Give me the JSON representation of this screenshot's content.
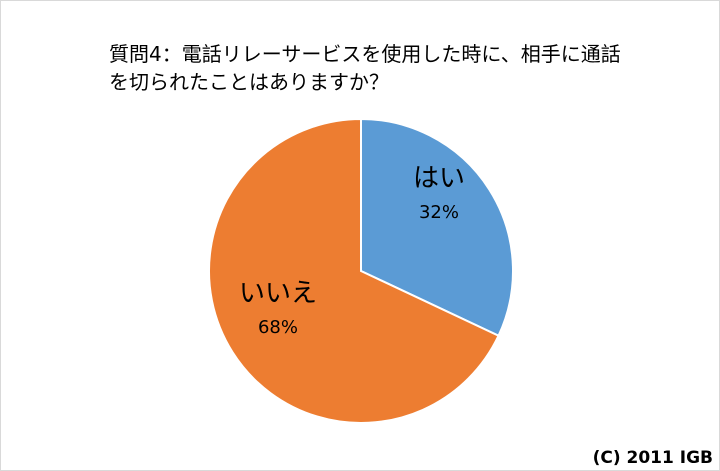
{
  "chart_data": {
    "type": "pie",
    "title": "質問4：電話リレーサービスを使用した時に、相手に通話\nを切られたことはありますか？",
    "categories": [
      "はい",
      "いいえ"
    ],
    "values": [
      32,
      68
    ],
    "value_labels": [
      "32%",
      "68%"
    ],
    "colors": [
      "#5b9bd5",
      "#ed7d31"
    ],
    "start_angle_deg": 0,
    "direction": "clockwise",
    "legend": "none"
  },
  "copyright": "(C) 2011 IGB"
}
